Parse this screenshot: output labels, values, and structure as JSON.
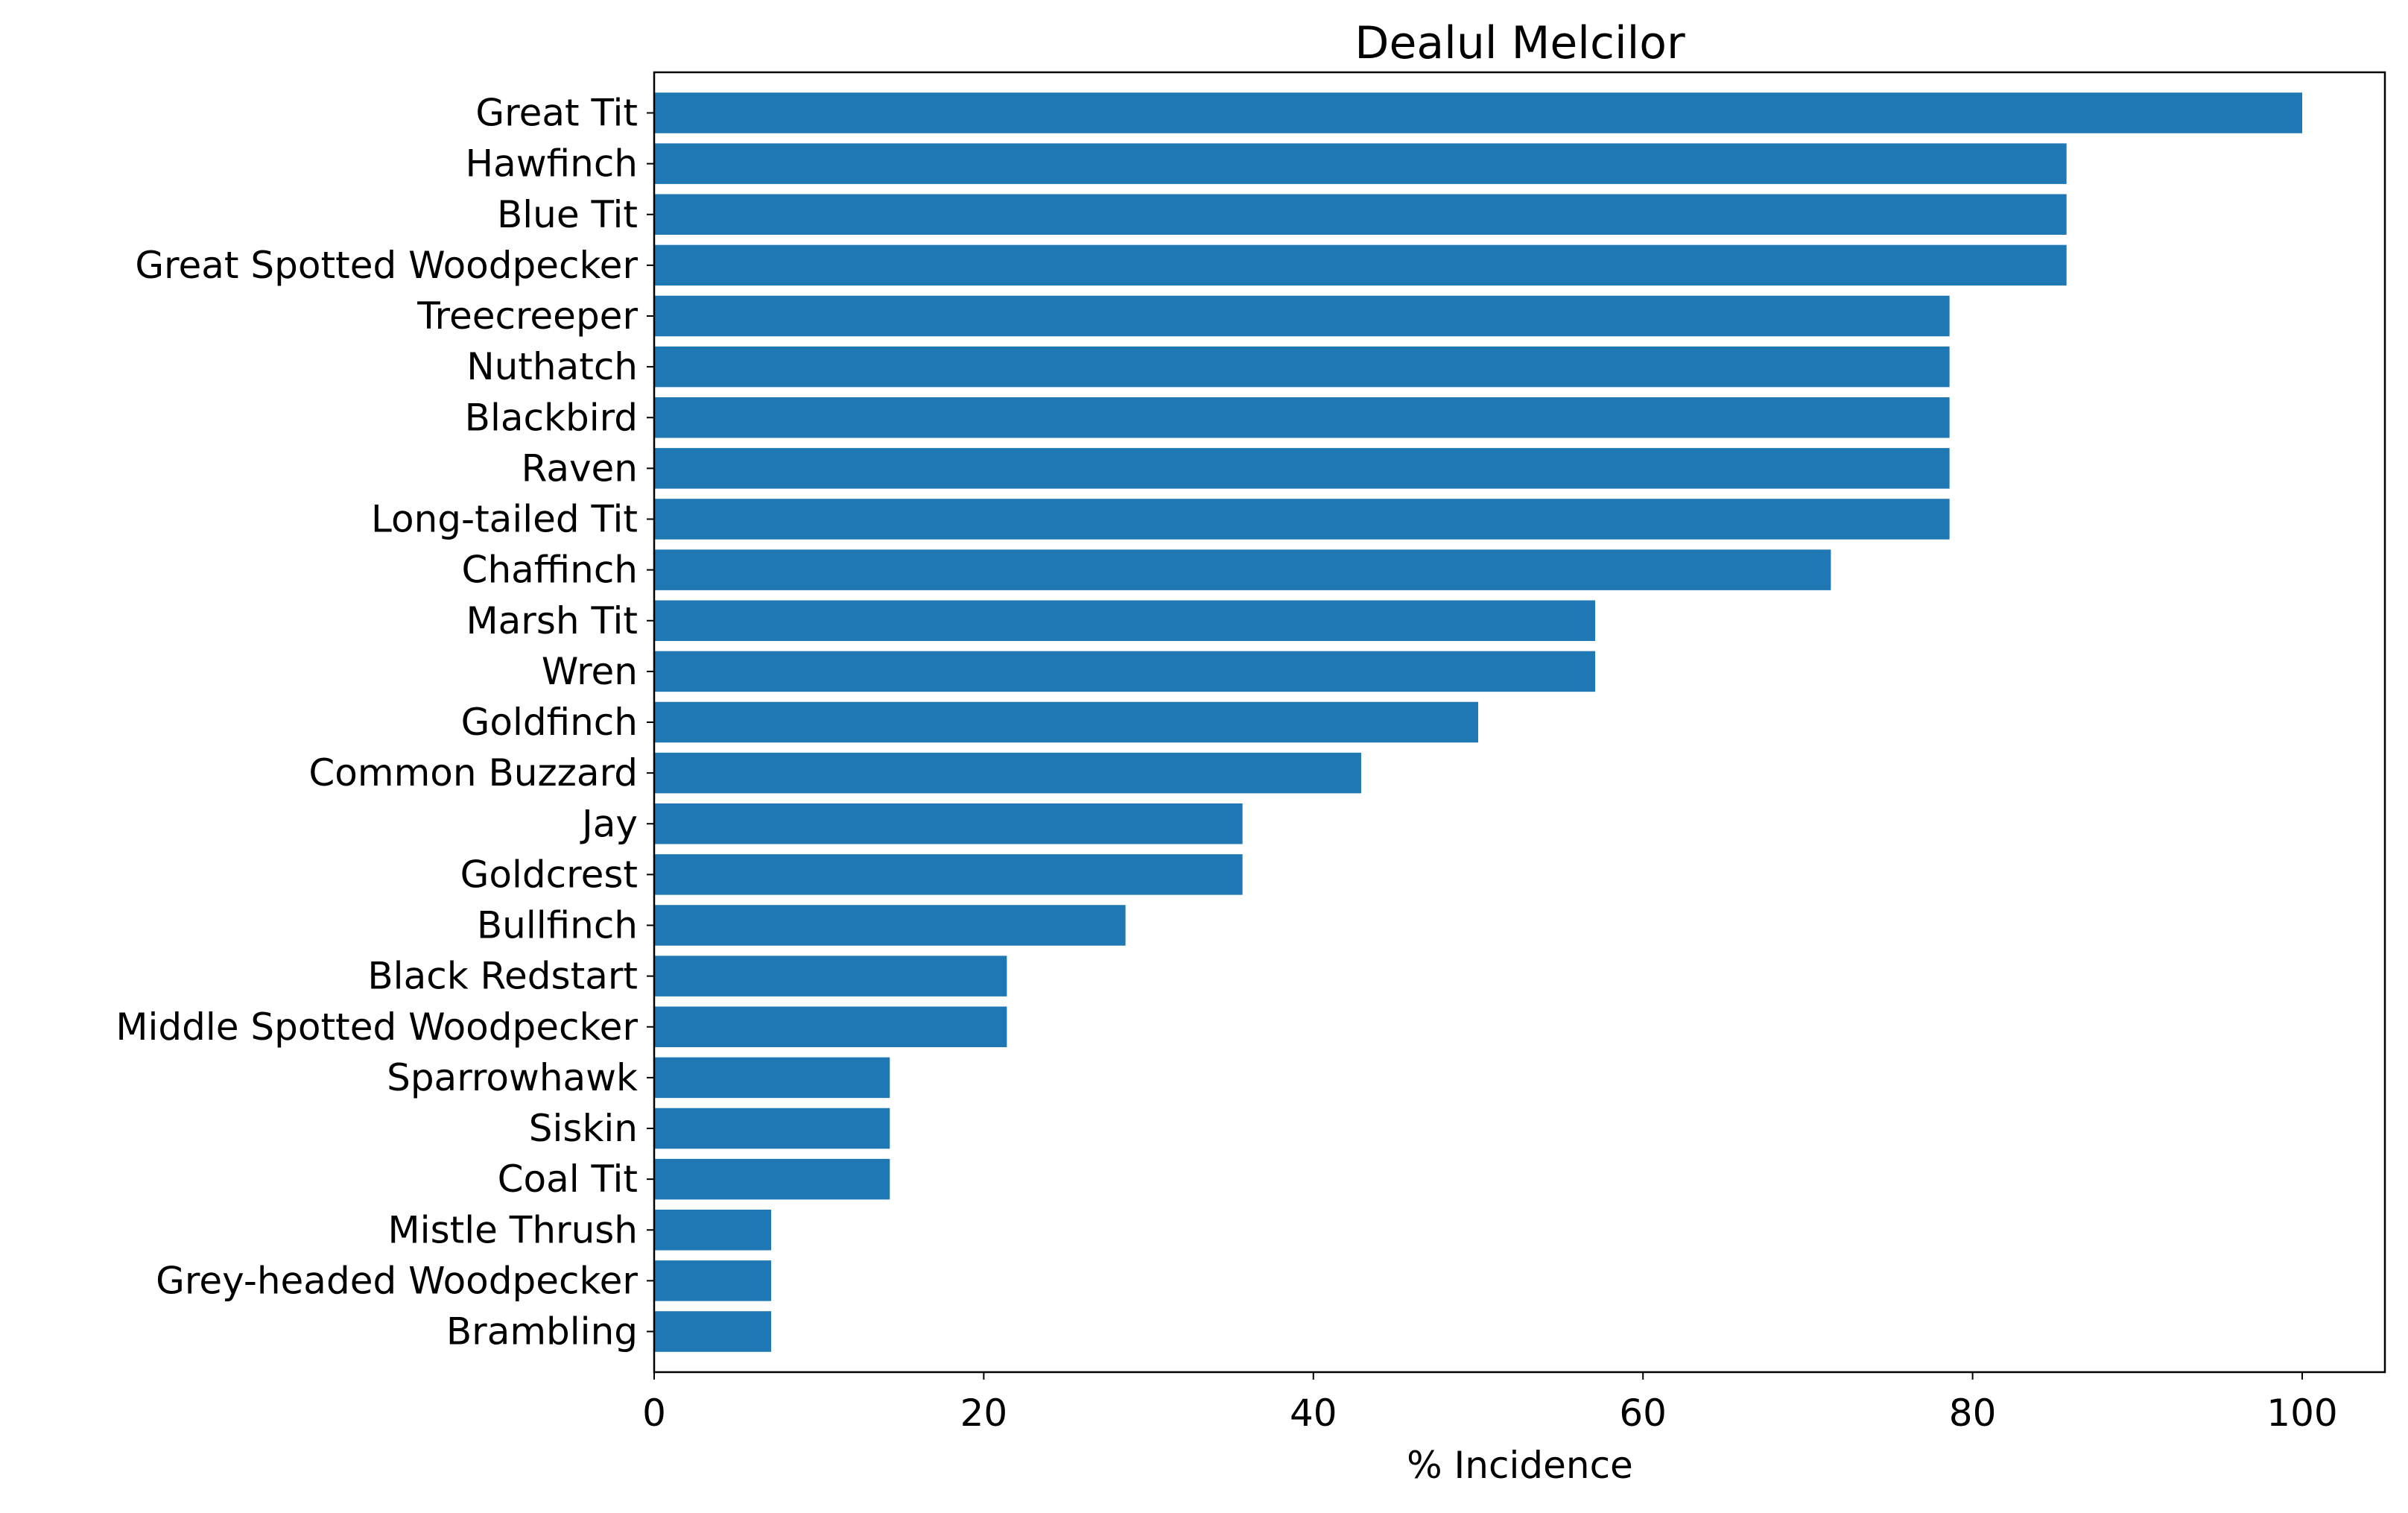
{
  "chart_data": {
    "type": "bar",
    "orientation": "horizontal",
    "title": "Dealul Melcilor",
    "xlabel": "% Incidence",
    "ylabel": "",
    "xlim": [
      0,
      105
    ],
    "xticks": [
      0,
      20,
      40,
      60,
      80,
      100
    ],
    "grid": false,
    "bar_color": "#1f77b4",
    "categories": [
      "Great Tit",
      "Hawfinch",
      "Blue Tit",
      "Great Spotted Woodpecker",
      "Treecreeper",
      "Nuthatch",
      "Blackbird",
      "Raven",
      "Long-tailed Tit",
      "Chaffinch",
      "Marsh Tit",
      "Wren",
      "Goldfinch",
      "Common Buzzard",
      "Jay",
      "Goldcrest",
      "Bullfinch",
      "Black Redstart",
      "Middle Spotted Woodpecker",
      "Sparrowhawk",
      "Siskin",
      "Coal Tit",
      "Mistle Thrush",
      "Grey-headed Woodpecker",
      "Brambling"
    ],
    "values": [
      100,
      85.7,
      85.7,
      85.7,
      78.6,
      78.6,
      78.6,
      78.6,
      78.6,
      71.4,
      57.1,
      57.1,
      50,
      42.9,
      35.7,
      35.7,
      28.6,
      21.4,
      21.4,
      14.3,
      14.3,
      14.3,
      7.1,
      7.1,
      7.1
    ]
  }
}
